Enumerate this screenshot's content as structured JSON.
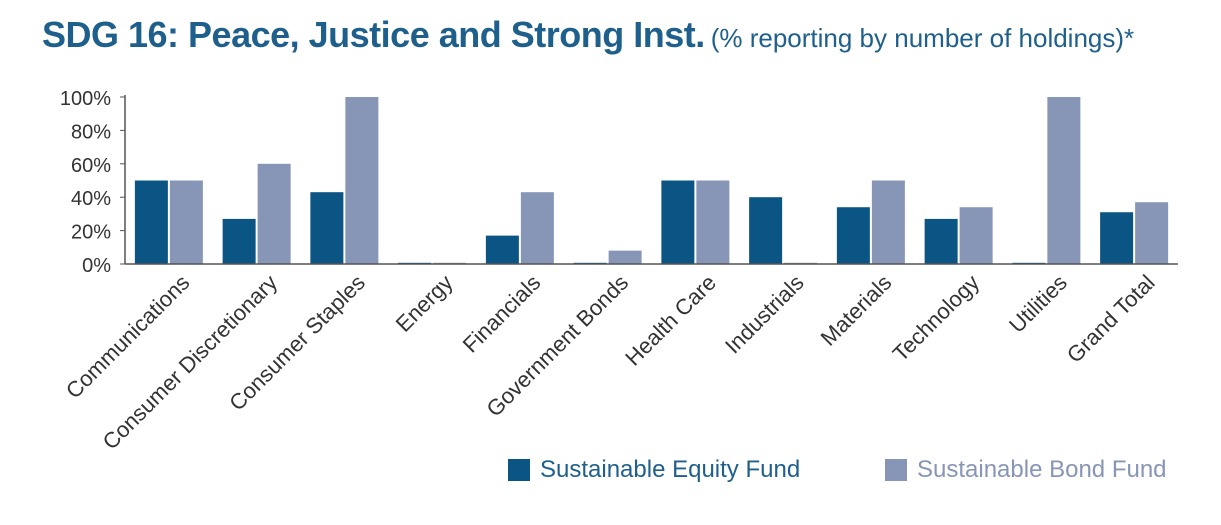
{
  "chart_data": {
    "type": "bar",
    "title": "SDG 16: Peace, Justice and Strong Inst.",
    "subtitle": "(% reporting by number of holdings)*",
    "categories": [
      "Communications",
      "Consumer Discretionary",
      "Consumer Staples",
      "Energy",
      "Financials",
      "Government Bonds",
      "Health Care",
      "Industrials",
      "Materials",
      "Technology",
      "Utilities",
      "Grand Total"
    ],
    "series": [
      {
        "name": "Sustainable Equity Fund",
        "color": "#0b5585",
        "values": [
          50,
          27,
          43,
          0,
          17,
          0,
          50,
          40,
          34,
          27,
          0,
          31
        ]
      },
      {
        "name": "Sustainable Bond Fund",
        "color": "#8795b6",
        "values": [
          50,
          60,
          100,
          0,
          43,
          8,
          50,
          0,
          50,
          34,
          100,
          37
        ]
      }
    ],
    "ylim": [
      0,
      100
    ],
    "yticks": [
      "0%",
      "20%",
      "40%",
      "60%",
      "80%",
      "100%"
    ],
    "xlabel": "",
    "ylabel": "",
    "legend_position": "bottom-right"
  }
}
